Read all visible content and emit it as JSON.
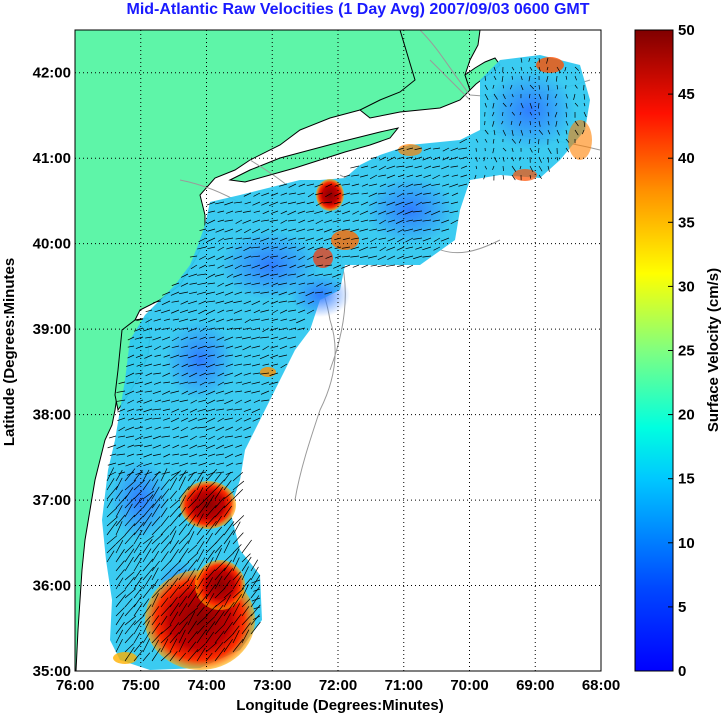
{
  "title": "Mid-Atlantic Raw Velocities (1 Day Avg) 2007/09/03 0600 GMT",
  "map": {
    "xlabel": "Longitude (Degrees:Minutes)",
    "ylabel": "Latitude (Degrees:Minutes",
    "x_ticks": [
      "76:00",
      "75:00",
      "74:00",
      "73:00",
      "72:00",
      "71:00",
      "70:00",
      "69:00",
      "68:00"
    ],
    "y_ticks": [
      "35:00",
      "36:00",
      "37:00",
      "38:00",
      "39:00",
      "40:00",
      "41:00",
      "42:00"
    ],
    "lon_range": [
      -76.0,
      -68.0
    ],
    "lat_range": [
      35.0,
      42.5
    ],
    "grid": "dotted",
    "colors": {
      "land": "#5ef5a8",
      "coastline": "#000000",
      "bathymetry": "#9a9a9a",
      "ocean": "#ffffff"
    }
  },
  "colorbar": {
    "label": "Surface Velocity (cm/s)",
    "ticks": [
      "0",
      "5",
      "10",
      "15",
      "20",
      "25",
      "30",
      "35",
      "40",
      "45",
      "50"
    ],
    "range": [
      0,
      50
    ],
    "colormap": "jet"
  }
}
